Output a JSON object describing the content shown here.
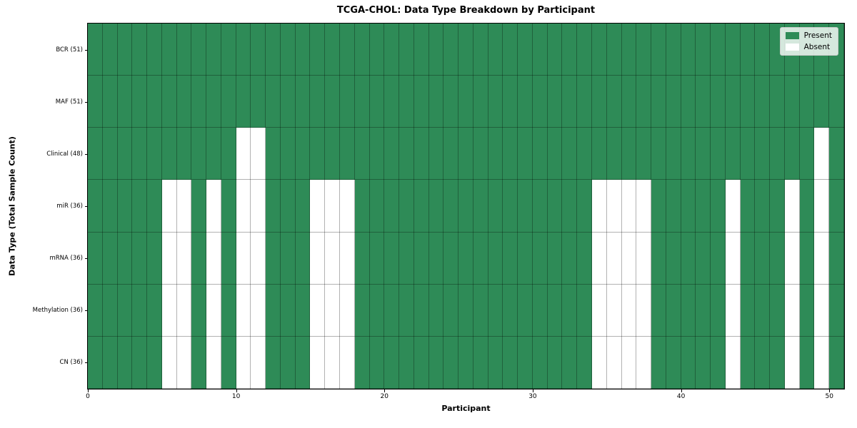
{
  "chart_data": {
    "type": "heatmap",
    "title": "TCGA-CHOL: Data Type Breakdown by Participant",
    "xlabel": "Participant",
    "ylabel": "Data Type (Total Sample Count)",
    "n_participants": 51,
    "x_range": [
      0,
      51
    ],
    "x_ticks": [
      {
        "value": 0,
        "label": "0"
      },
      {
        "value": 10,
        "label": "10"
      },
      {
        "value": 20,
        "label": "20"
      },
      {
        "value": 30,
        "label": "30"
      },
      {
        "value": 40,
        "label": "40"
      },
      {
        "value": 50,
        "label": "50"
      }
    ],
    "rows": [
      {
        "label": "BCR (51)",
        "name": "BCR",
        "total": 51,
        "absent": []
      },
      {
        "label": "MAF (51)",
        "name": "MAF",
        "total": 51,
        "absent": []
      },
      {
        "label": "Clinical (48)",
        "name": "Clinical",
        "total": 48,
        "absent": [
          10,
          11,
          49
        ]
      },
      {
        "label": "miR (36)",
        "name": "miR",
        "total": 36,
        "absent": [
          5,
          6,
          8,
          10,
          11,
          15,
          16,
          17,
          34,
          35,
          36,
          37,
          43,
          47,
          49
        ]
      },
      {
        "label": "mRNA (36)",
        "name": "mRNA",
        "total": 36,
        "absent": [
          5,
          6,
          8,
          10,
          11,
          15,
          16,
          17,
          34,
          35,
          36,
          37,
          43,
          47,
          49
        ]
      },
      {
        "label": "Methylation (36)",
        "name": "Methylation",
        "total": 36,
        "absent": [
          5,
          6,
          8,
          10,
          11,
          15,
          16,
          17,
          34,
          35,
          36,
          37,
          43,
          47,
          49
        ]
      },
      {
        "label": "CN (36)",
        "name": "CN",
        "total": 36,
        "absent": [
          5,
          6,
          8,
          10,
          11,
          15,
          16,
          17,
          34,
          35,
          36,
          37,
          43,
          47,
          49
        ]
      }
    ],
    "legend": [
      {
        "label": "Present",
        "color": "#2e8b57"
      },
      {
        "label": "Absent",
        "color": "#ffffff"
      }
    ],
    "colors": {
      "present": "#2e8b57",
      "absent": "#ffffff",
      "gridline": "rgba(0,0,0,0.30)",
      "spine": "#000000"
    },
    "legend_position": "upper right",
    "grid": true
  }
}
